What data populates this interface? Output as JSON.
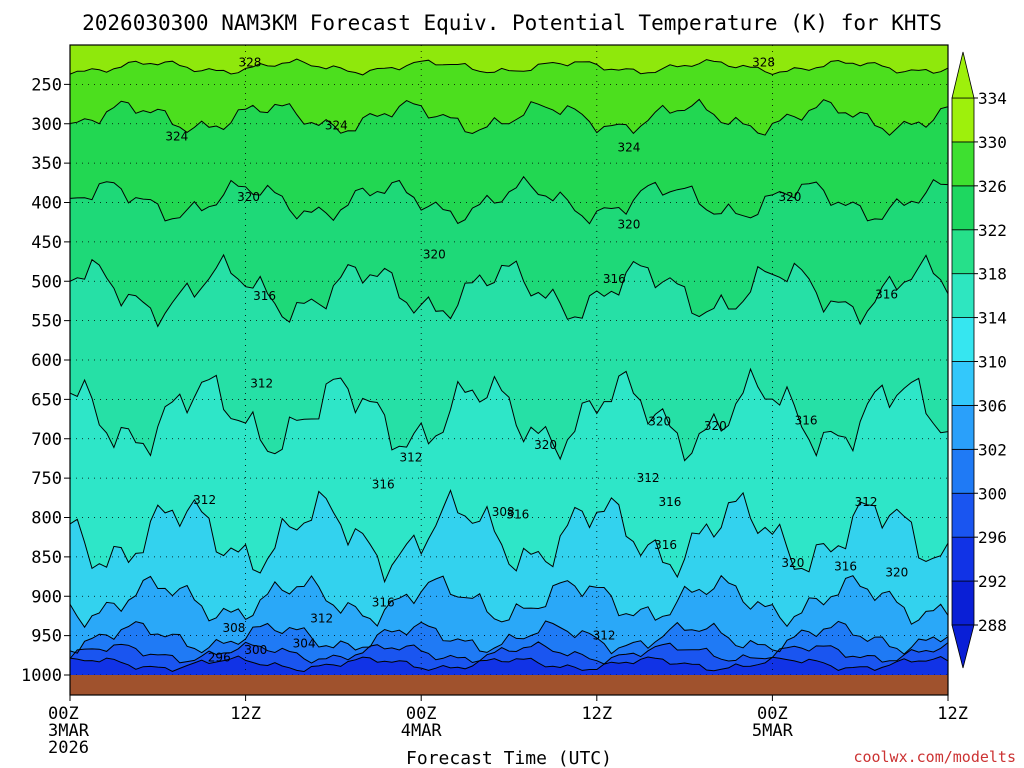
{
  "chart_data": {
    "type": "heatmap",
    "title": "2026030300 NAM3KM Forecast Equiv. Potential Temperature (K) for KHTS",
    "xlabel": "Forecast Time (UTC)",
    "x_ticks": [
      {
        "hour": 0,
        "lines": [
          "00Z",
          "3MAR",
          "2026"
        ]
      },
      {
        "hour": 12,
        "lines": [
          "12Z"
        ]
      },
      {
        "hour": 24,
        "lines": [
          "00Z",
          "4MAR"
        ]
      },
      {
        "hour": 36,
        "lines": [
          "12Z"
        ]
      },
      {
        "hour": 48,
        "lines": [
          "00Z",
          "5MAR"
        ]
      },
      {
        "hour": 60,
        "lines": [
          "12Z"
        ]
      }
    ],
    "x_range_hours": [
      0,
      60
    ],
    "y_ticks": [
      250,
      300,
      350,
      400,
      450,
      500,
      550,
      600,
      650,
      700,
      750,
      800,
      850,
      900,
      950,
      1000
    ],
    "y_range_hpa": [
      200,
      1000
    ],
    "surface_pressure_hpa": 1000,
    "colorbar": {
      "levels": [
        288,
        292,
        296,
        300,
        302,
        306,
        310,
        314,
        318,
        322,
        326,
        330,
        334
      ],
      "labels": [
        "288",
        "292",
        "296",
        "300",
        "302",
        "306",
        "310",
        "314",
        "318",
        "322",
        "326",
        "330",
        "334"
      ],
      "colors": [
        "#0a1fd6",
        "#1133e6",
        "#1a55f0",
        "#1f7af5",
        "#2aa0fa",
        "#33c8fb",
        "#36e6f0",
        "#2ee6c0",
        "#26e08a",
        "#1ed760",
        "#3ee030",
        "#9ef00c"
      ]
    },
    "contour_labels": [
      {
        "text": "328",
        "hour": 12.3,
        "p": 222
      },
      {
        "text": "328",
        "hour": 47.4,
        "p": 222
      },
      {
        "text": "324",
        "hour": 7.3,
        "p": 316
      },
      {
        "text": "324",
        "hour": 18.2,
        "p": 302
      },
      {
        "text": "324",
        "hour": 38.2,
        "p": 330
      },
      {
        "text": "320",
        "hour": 12.2,
        "p": 393
      },
      {
        "text": "320",
        "hour": 24.9,
        "p": 466
      },
      {
        "text": "320",
        "hour": 38.2,
        "p": 428
      },
      {
        "text": "320",
        "hour": 49.2,
        "p": 393
      },
      {
        "text": "316",
        "hour": 13.3,
        "p": 519
      },
      {
        "text": "316",
        "hour": 37.2,
        "p": 497
      },
      {
        "text": "316",
        "hour": 55.8,
        "p": 517
      },
      {
        "text": "316",
        "hour": 50.3,
        "p": 677
      },
      {
        "text": "312",
        "hour": 13.1,
        "p": 630
      },
      {
        "text": "312",
        "hour": 23.3,
        "p": 724
      },
      {
        "text": "312",
        "hour": 9.2,
        "p": 778
      },
      {
        "text": "312",
        "hour": 39.5,
        "p": 750
      },
      {
        "text": "312",
        "hour": 54.4,
        "p": 780
      },
      {
        "text": "312",
        "hour": 17.2,
        "p": 928
      },
      {
        "text": "312",
        "hour": 36.5,
        "p": 950
      },
      {
        "text": "316",
        "hour": 21.4,
        "p": 758
      },
      {
        "text": "316",
        "hour": 21.4,
        "p": 908
      },
      {
        "text": "316",
        "hour": 30.6,
        "p": 796
      },
      {
        "text": "316",
        "hour": 41.0,
        "p": 780
      },
      {
        "text": "316",
        "hour": 40.7,
        "p": 835
      },
      {
        "text": "316",
        "hour": 53.0,
        "p": 862
      },
      {
        "text": "320",
        "hour": 32.5,
        "p": 708
      },
      {
        "text": "320",
        "hour": 40.3,
        "p": 678
      },
      {
        "text": "320",
        "hour": 44.1,
        "p": 684
      },
      {
        "text": "320",
        "hour": 49.4,
        "p": 858
      },
      {
        "text": "320",
        "hour": 56.5,
        "p": 870
      },
      {
        "text": "308",
        "hour": 11.2,
        "p": 940
      },
      {
        "text": "308",
        "hour": 29.6,
        "p": 793
      },
      {
        "text": "304",
        "hour": 16.0,
        "p": 960
      },
      {
        "text": "300",
        "hour": 12.7,
        "p": 968
      },
      {
        "text": "296",
        "hour": 10.2,
        "p": 978
      }
    ]
  },
  "credit": "coolwx.com/modelts"
}
